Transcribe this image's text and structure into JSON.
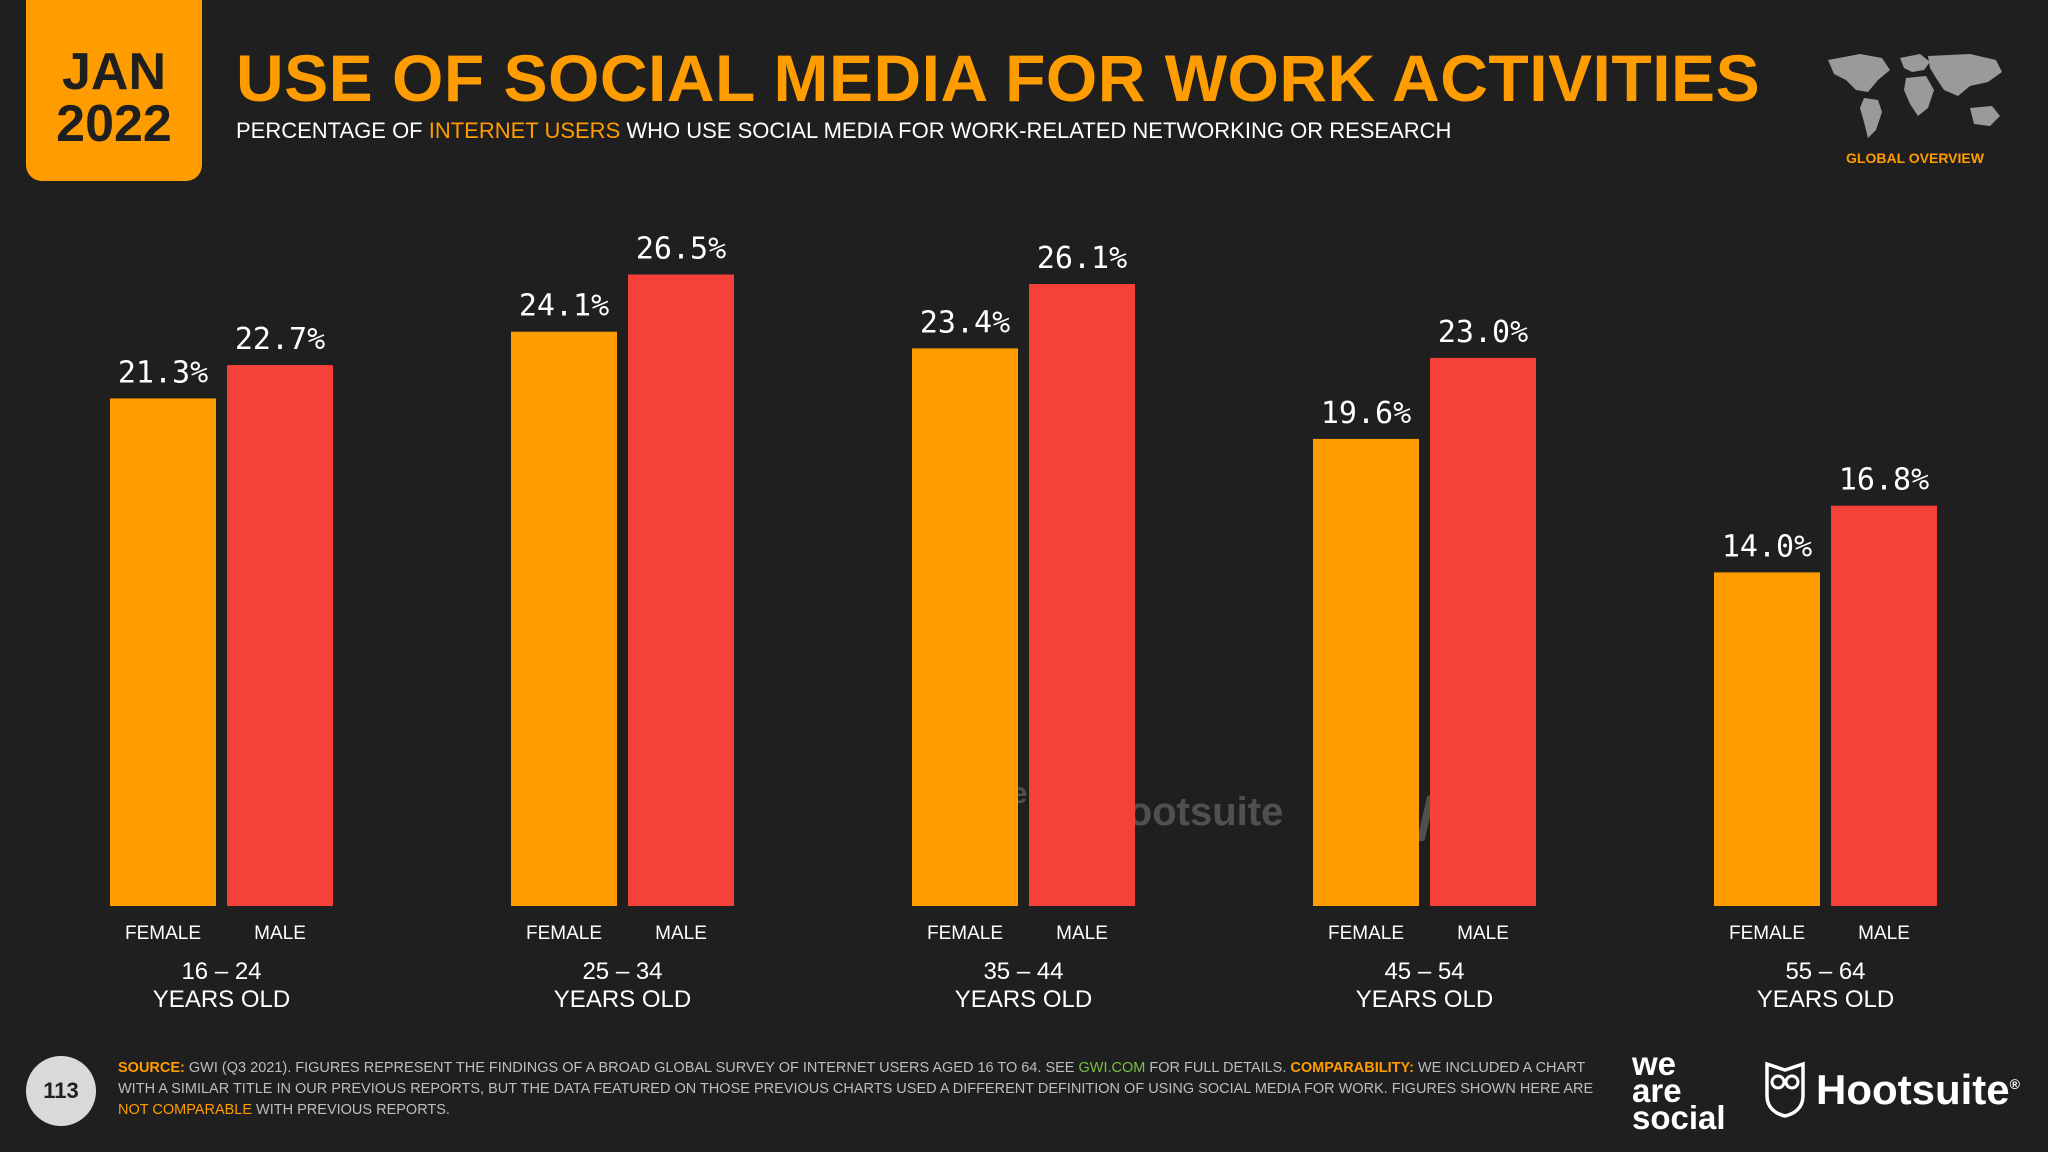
{
  "header": {
    "month": "JAN",
    "year": "2022",
    "title": "USE OF SOCIAL MEDIA FOR WORK ACTIVITIES",
    "subtitle_pre": "PERCENTAGE OF ",
    "subtitle_hl": "INTERNET USERS",
    "subtitle_post": " WHO USE SOCIAL MEDIA FOR WORK-RELATED NETWORKING OR RESEARCH",
    "badge": "GLOBAL OVERVIEW"
  },
  "colors": {
    "female": "#ff9d00",
    "male": "#f5413a",
    "accent": "#ff9d00",
    "background": "#1f1f1f"
  },
  "chart_data": {
    "type": "bar",
    "title": "USE OF SOCIAL MEDIA FOR WORK ACTIVITIES",
    "xlabel": "",
    "ylabel": "",
    "ylim": [
      0,
      30
    ],
    "grid": false,
    "categories": [
      {
        "range": "16 – 24",
        "label": "YEARS OLD"
      },
      {
        "range": "25 – 34",
        "label": "YEARS OLD"
      },
      {
        "range": "35 – 44",
        "label": "YEARS OLD"
      },
      {
        "range": "45 – 54",
        "label": "YEARS OLD"
      },
      {
        "range": "55 – 64",
        "label": "YEARS OLD"
      }
    ],
    "series": [
      {
        "name": "FEMALE",
        "values": [
          21.3,
          24.1,
          23.4,
          19.6,
          14.0
        ],
        "labels": [
          "21.3%",
          "24.1%",
          "23.4%",
          "19.6%",
          "14.0%"
        ]
      },
      {
        "name": "MALE",
        "values": [
          22.7,
          26.5,
          26.1,
          23.0,
          16.8
        ],
        "labels": [
          "22.7%",
          "26.5%",
          "26.1%",
          "23.0%",
          "16.8%"
        ]
      }
    ]
  },
  "watermarks": {
    "was": "we are social",
    "hootsuite": "Hootsuite",
    "gwi": "GWI."
  },
  "footer": {
    "page_number": "113",
    "source_label": "SOURCE:",
    "source_text_1": " GWI (Q3 2021). FIGURES REPRESENT THE FINDINGS OF A BROAD GLOBAL SURVEY OF INTERNET USERS AGED 16 TO 64. SEE ",
    "source_link": "GWI.COM",
    "source_text_2": " FOR FULL DETAILS. ",
    "comparability_label": "COMPARABILITY:",
    "comparability_text": " WE INCLUDED A CHART WITH A SIMILAR TITLE IN OUR PREVIOUS REPORTS, BUT THE DATA FEATURED ON THOSE PREVIOUS CHARTS USED A DIFFERENT DEFINITION OF USING SOCIAL MEDIA FOR WORK. FIGURES SHOWN HERE ARE ",
    "not_comparable": "NOT COMPARABLE",
    "comparability_end": " WITH PREVIOUS REPORTS.",
    "logo_we": "we",
    "logo_are": "are",
    "logo_social": "social",
    "logo_hootsuite": "Hootsuite",
    "registered": "®"
  }
}
